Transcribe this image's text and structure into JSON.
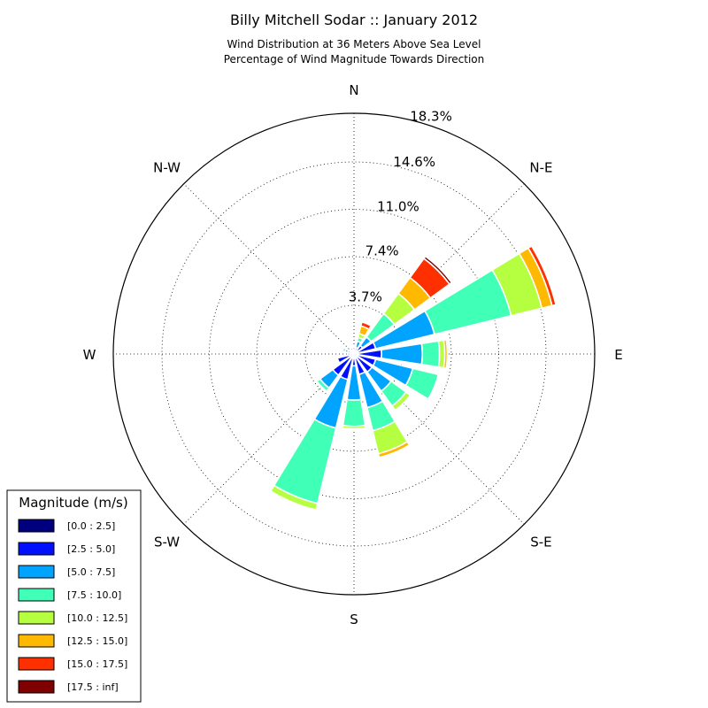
{
  "chart_data": {
    "type": "windrose",
    "title": "Billy Mitchell Sodar :: January 2012",
    "subtitle_lines": [
      "Wind Distribution at 36 Meters Above Sea Level",
      "Percentage of Wind Magnitude Towards Direction"
    ],
    "direction_labels": [
      "N",
      "N-E",
      "E",
      "S-E",
      "S",
      "S-W",
      "W",
      "N-W"
    ],
    "radial_tick_labels": [
      "3.7%",
      "7.4%",
      "11.0%",
      "14.6%",
      "18.3%"
    ],
    "radial_ticks": [
      3.7,
      7.4,
      11.0,
      14.6,
      18.3
    ],
    "radial_max": 18.3,
    "grid": true,
    "legend": {
      "title": "Magnitude (m/s)",
      "placement": "bottom-left",
      "bins": [
        {
          "label": "[0.0 : 2.5]",
          "color": "#00007f"
        },
        {
          "label": "[2.5 : 5.0]",
          "color": "#0010ff"
        },
        {
          "label": "[5.0 : 7.5]",
          "color": "#00a4ff"
        },
        {
          "label": "[7.5 : 10.0]",
          "color": "#40ffb6"
        },
        {
          "label": "[10.0 : 12.5]",
          "color": "#b6ff40"
        },
        {
          "label": "[12.5 : 15.0]",
          "color": "#ffb900"
        },
        {
          "label": "[15.0 : 17.5]",
          "color": "#ff3000"
        },
        {
          "label": "[17.5 : inf]",
          "color": "#7f0000"
        }
      ]
    },
    "sectors": [
      {
        "dir": 0,
        "values": [
          0.3,
          0.2,
          0,
          0,
          0,
          0,
          0,
          0
        ]
      },
      {
        "dir": 22.5,
        "values": [
          0.3,
          0.2,
          0.5,
          0.3,
          0.3,
          0.6,
          0.3,
          0
        ]
      },
      {
        "dir": 45,
        "values": [
          0.3,
          0.5,
          0.8,
          2.2,
          1.9,
          1.5,
          1.8,
          0.2
        ]
      },
      {
        "dir": 67.5,
        "values": [
          0.3,
          1.4,
          4.6,
          6.0,
          2.4,
          0.8,
          0.3,
          0
        ]
      },
      {
        "dir": 90,
        "values": [
          0.3,
          1.8,
          3.1,
          1.3,
          0.4,
          0.2,
          0,
          0
        ]
      },
      {
        "dir": 112.5,
        "values": [
          0.3,
          1.4,
          2.9,
          2.0,
          0,
          0,
          0,
          0
        ]
      },
      {
        "dir": 135,
        "values": [
          0.3,
          1.4,
          1.8,
          1.4,
          0.4,
          0,
          0,
          0
        ]
      },
      {
        "dir": 157.5,
        "values": [
          0.3,
          1.3,
          2.6,
          1.8,
          1.8,
          0.3,
          0,
          0
        ]
      },
      {
        "dir": 180,
        "values": [
          0.3,
          0.6,
          2.6,
          2.0,
          0.2,
          0,
          0,
          0
        ]
      },
      {
        "dir": 202.5,
        "values": [
          0.3,
          1.7,
          3.8,
          5.9,
          0.5,
          0,
          0,
          0
        ]
      },
      {
        "dir": 225,
        "values": [
          0.3,
          1.7,
          1.2,
          0.3,
          0,
          0,
          0,
          0
        ]
      },
      {
        "dir": 247.5,
        "values": [
          0.3,
          1.0,
          0,
          0,
          0,
          0,
          0,
          0
        ]
      },
      {
        "dir": 270,
        "values": [
          0.3,
          0.2,
          0,
          0,
          0,
          0,
          0,
          0
        ]
      },
      {
        "dir": 292.5,
        "values": [
          0.3,
          0.2,
          0.2,
          0.2,
          0,
          0,
          0,
          0
        ]
      },
      {
        "dir": 315,
        "values": [
          0.3,
          0,
          0,
          0,
          0,
          0,
          0,
          0
        ]
      },
      {
        "dir": 337.5,
        "values": [
          0.3,
          0.2,
          0,
          0,
          0,
          0,
          0,
          0
        ]
      }
    ]
  }
}
